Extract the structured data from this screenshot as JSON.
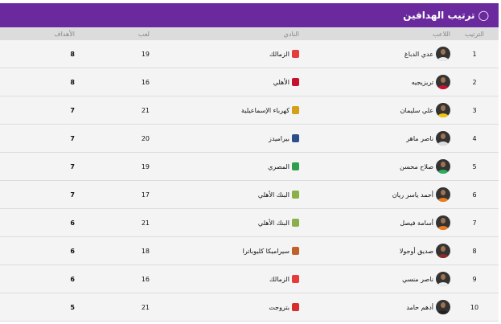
{
  "title": "ترتيب الهدافين",
  "title_icon": "award-icon",
  "colors": {
    "header": "#6a2a9e"
  },
  "columns": [
    "الترتيب",
    "اللاعب",
    "النادي",
    "لعب",
    "الأهداف"
  ],
  "rows": [
    {
      "rank": "1",
      "player": "عدي الدباغ",
      "club": "الزمالك",
      "played": "19",
      "goals": "8",
      "kit": "#eeeeee",
      "logo": "#e63b3b"
    },
    {
      "rank": "2",
      "player": "تريزيجيه",
      "club": "الأهلي",
      "played": "16",
      "goals": "8",
      "kit": "#c8102e",
      "logo": "#c8102e"
    },
    {
      "rank": "3",
      "player": "علي سليمان",
      "club": "كهرباء الإسماعيلية",
      "played": "21",
      "goals": "7",
      "kit": "#f1c40f",
      "logo": "#d4a017"
    },
    {
      "rank": "4",
      "player": "ناصر ماهر",
      "club": "بيراميدز",
      "played": "20",
      "goals": "7",
      "kit": "#dddddd",
      "logo": "#2c4f8c"
    },
    {
      "rank": "5",
      "player": "صلاح محسن",
      "club": "المصري",
      "played": "19",
      "goals": "7",
      "kit": "#27ae60",
      "logo": "#2e9e4f"
    },
    {
      "rank": "6",
      "player": "أحمد ياسر ريان",
      "club": "البنك الأهلي",
      "played": "17",
      "goals": "7",
      "kit": "#f07a1a",
      "logo": "#8bb04a"
    },
    {
      "rank": "7",
      "player": "أسامة فيصل",
      "club": "البنك الأهلي",
      "played": "21",
      "goals": "6",
      "kit": "#f07a1a",
      "logo": "#8bb04a"
    },
    {
      "rank": "8",
      "player": "صديق أوجولا",
      "club": "سيراميكا كليوباترا",
      "played": "18",
      "goals": "6",
      "kit": "#8b2a2a",
      "logo": "#c0602a"
    },
    {
      "rank": "9",
      "player": "ناصر منسي",
      "club": "الزمالك",
      "played": "16",
      "goals": "6",
      "kit": "#eeeeee",
      "logo": "#e63b3b"
    },
    {
      "rank": "10",
      "player": "أدهم حامد",
      "club": "بتروجت",
      "played": "21",
      "goals": "5",
      "kit": "#222222",
      "logo": "#d62d2d"
    }
  ]
}
